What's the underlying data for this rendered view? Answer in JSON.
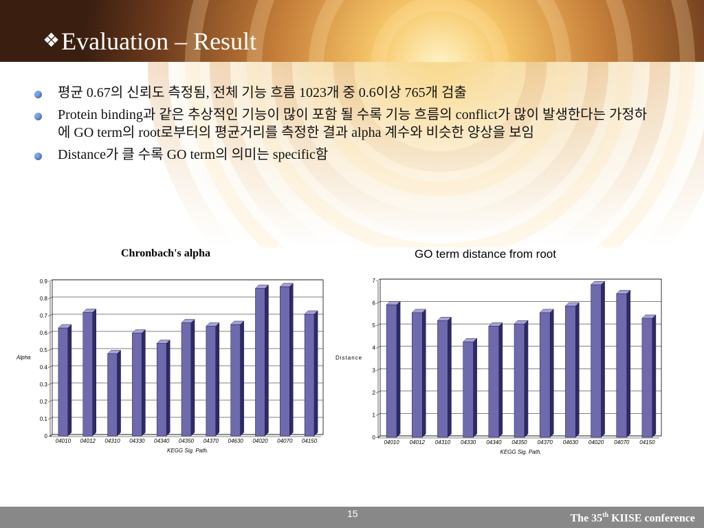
{
  "slide": {
    "title_prefix": "❖",
    "title": "Evaluation – Result",
    "page_number": "15",
    "conference_pre": "The 35",
    "conference_sup": "th",
    "conference_post": " KIISE conference"
  },
  "bullets": [
    "평균 0.67의 신뢰도 측정됨, 전체 기능 흐름 1023개 중 0.6이상 765개 검출",
    "Protein binding과 같은 추상적인 기능이 많이 포함 될 수록 기능 흐름의 conflict가 많이 발생한다는 가정하에 GO term의 root로부터의 평균거리를 측정한 결과 alpha 계수와 비슷한 양상을 보임",
    "Distance가 클 수록 GO term의 의미는 specific함"
  ],
  "colors": {
    "bar_front": "#6f6aad",
    "bar_side": "#2e2a66",
    "bar_top": "#a5a2d6",
    "footer": "#888888",
    "bullet": "#7aa6ea"
  },
  "chart_data": [
    {
      "type": "bar",
      "title": "Chronbach's alpha",
      "xlabel": "KEGG Sig. Path.",
      "ylabel": "Alpha",
      "ylim": [
        0,
        0.9
      ],
      "yticks": [
        "0",
        "0.1",
        "0.2",
        "0.3",
        "0.4",
        "0.5",
        "0.6",
        "0.7",
        "0.8",
        "0.9"
      ],
      "grid": true,
      "categories": [
        "04010",
        "04012",
        "04310",
        "04330",
        "04340",
        "04350",
        "04370",
        "04630",
        "04020",
        "04070",
        "04150"
      ],
      "values": [
        0.62,
        0.71,
        0.47,
        0.59,
        0.53,
        0.65,
        0.63,
        0.64,
        0.85,
        0.86,
        0.7
      ]
    },
    {
      "type": "bar",
      "title": "GO term distance from root",
      "xlabel": "KEGG Sig. Path.",
      "ylabel": "Distance",
      "ylim": [
        0,
        7
      ],
      "yticks": [
        "0",
        "1",
        "2",
        "3",
        "4",
        "5",
        "6",
        "7"
      ],
      "grid": true,
      "categories": [
        "04010",
        "04012",
        "04310",
        "04330",
        "04340",
        "04350",
        "04370",
        "04630",
        "04020",
        "04070",
        "04150"
      ],
      "values": [
        5.85,
        5.5,
        5.15,
        4.2,
        4.9,
        5.0,
        5.5,
        5.8,
        6.75,
        6.35,
        5.25
      ]
    }
  ]
}
